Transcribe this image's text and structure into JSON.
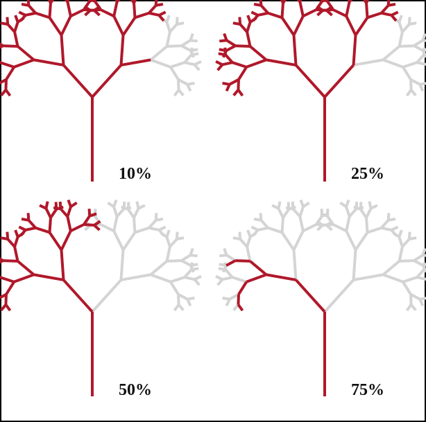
{
  "panels": [
    {
      "label": "10%"
    },
    {
      "label": "25%"
    },
    {
      "label": "50%"
    },
    {
      "label": "75%"
    }
  ]
}
